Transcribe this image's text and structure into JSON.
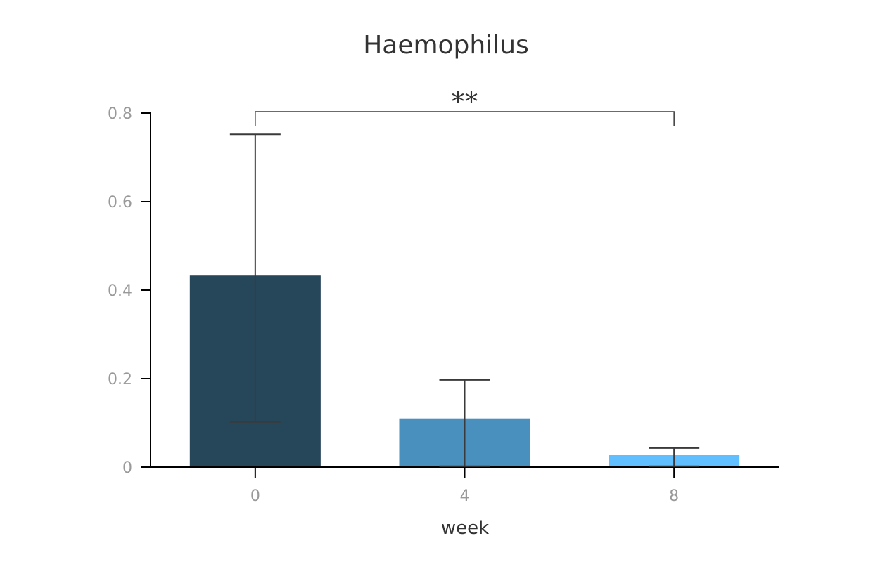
{
  "chart_data": {
    "type": "bar",
    "title": "Haemophilus",
    "xlabel": "week",
    "ylabel": "",
    "categories": [
      "0",
      "4",
      "8"
    ],
    "values": [
      0.433,
      0.11,
      0.027
    ],
    "error_upper": [
      0.752,
      0.197,
      0.043
    ],
    "error_lower": [
      0.102,
      0.002,
      0.002
    ],
    "colors": [
      "#264659",
      "#4a90bf",
      "#62bfff"
    ],
    "ylim": [
      0,
      0.8
    ],
    "yticks": [
      0,
      0.2,
      0.4,
      0.6,
      0.8
    ],
    "ytick_labels": [
      "0",
      "0.2",
      "0.4",
      "0.6",
      "0.8"
    ],
    "grid": false,
    "significance": [
      {
        "from": "0",
        "to": "8",
        "label": "**"
      }
    ]
  }
}
